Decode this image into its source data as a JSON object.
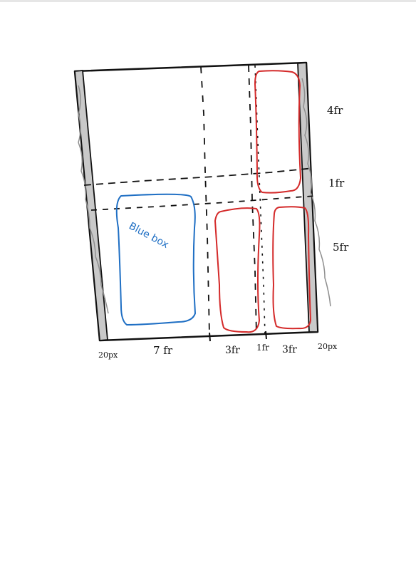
{
  "sketch": {
    "box_label": "Blue box",
    "column_labels": {
      "left_margin": "20px",
      "c1": "7 fr",
      "c2": "3fr",
      "c3": "1fr",
      "c4": "3fr",
      "right_margin": "20px"
    },
    "row_labels": {
      "r1": "4fr",
      "r2": "1fr",
      "r3": "5fr"
    },
    "colors": {
      "ink": "#111111",
      "blue": "#1f6fc4",
      "red": "#d42a2a",
      "margin_fill": "#bdbdbd"
    }
  }
}
